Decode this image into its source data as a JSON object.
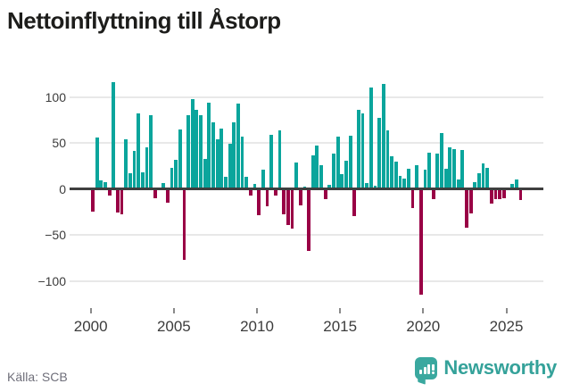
{
  "title": "Nettoinflyttning till Åstorp",
  "footer": {
    "source": "Källa: SCB",
    "brand": "Newsworthy"
  },
  "chart_data": {
    "type": "bar",
    "title": "Nettoinflyttning till Åstorp",
    "frequency": "quarterly",
    "x_start": "2000 Q1",
    "x_end": "2025 Q4",
    "ylim": [
      -125,
      125
    ],
    "grid": true,
    "y_ticks": [
      100,
      50,
      0,
      -50,
      -100
    ],
    "y_tick_labels": [
      "100",
      "50",
      "0",
      "−50",
      "−100"
    ],
    "x_tick_years": [
      2000,
      2005,
      2010,
      2015,
      2020,
      2025
    ],
    "x_tick_labels": [
      "2000",
      "2005",
      "2010",
      "2015",
      "2020",
      "2025"
    ],
    "colors": {
      "positive": "#0aa59c",
      "negative": "#990045",
      "axis": "#3f3f3f",
      "grid": "#e8e8e8",
      "brand_teal": "#3aa89f"
    },
    "series": [
      {
        "name": "Nettoinflyttning",
        "values_by_year": [
          {
            "year": 2000,
            "q": [
              -25,
              56,
              9,
              7
            ]
          },
          {
            "year": 2001,
            "q": [
              -7,
              116,
              -26,
              -28
            ]
          },
          {
            "year": 2002,
            "q": [
              54,
              17,
              41,
              82
            ]
          },
          {
            "year": 2003,
            "q": [
              18,
              45,
              80,
              -10
            ]
          },
          {
            "year": 2004,
            "q": [
              0,
              6,
              -15,
              23
            ]
          },
          {
            "year": 2005,
            "q": [
              32,
              65,
              -77,
              80
            ]
          },
          {
            "year": 2006,
            "q": [
              98,
              86,
              80,
              33
            ]
          },
          {
            "year": 2007,
            "q": [
              94,
              72,
              54,
              66
            ]
          },
          {
            "year": 2008,
            "q": [
              13,
              49,
              72,
              93
            ]
          },
          {
            "year": 2009,
            "q": [
              57,
              13,
              -7,
              5
            ]
          },
          {
            "year": 2010,
            "q": [
              -29,
              21,
              -19,
              59
            ]
          },
          {
            "year": 2011,
            "q": [
              -7,
              64,
              -28,
              -39
            ]
          },
          {
            "year": 2012,
            "q": [
              -43,
              29,
              -18,
              2
            ]
          },
          {
            "year": 2013,
            "q": [
              -67,
              36,
              47,
              26
            ]
          },
          {
            "year": 2014,
            "q": [
              -11,
              4,
              38,
              57
            ]
          },
          {
            "year": 2015,
            "q": [
              16,
              31,
              58,
              -30
            ]
          },
          {
            "year": 2016,
            "q": [
              86,
              82,
              6,
              110
            ]
          },
          {
            "year": 2017,
            "q": [
              3,
              77,
              114,
              64
            ]
          },
          {
            "year": 2018,
            "q": [
              35,
              30,
              14,
              11
            ]
          },
          {
            "year": 2019,
            "q": [
              22,
              -21,
              26,
              -115
            ]
          },
          {
            "year": 2020,
            "q": [
              21,
              39,
              -11,
              38
            ]
          },
          {
            "year": 2021,
            "q": [
              61,
              22,
              45,
              43
            ]
          },
          {
            "year": 2022,
            "q": [
              10,
              42,
              -42,
              -27
            ]
          },
          {
            "year": 2023,
            "q": [
              7,
              17,
              28,
              23
            ]
          },
          {
            "year": 2024,
            "q": [
              -16,
              -11,
              -11,
              -10
            ]
          },
          {
            "year": 2025,
            "q": [
              0,
              5,
              10,
              -12
            ]
          }
        ]
      }
    ]
  }
}
